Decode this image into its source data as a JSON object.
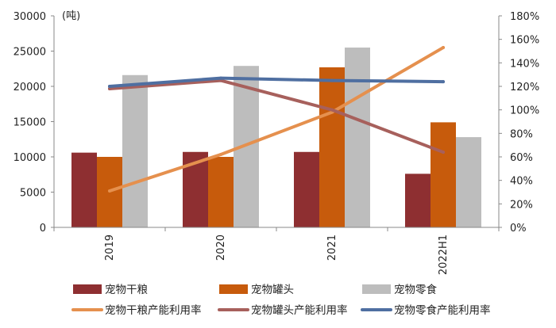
{
  "chart_data": {
    "type": "bar",
    "categories": [
      "2019",
      "2020",
      "2021",
      "2022H1"
    ],
    "unit_label": "(吨)",
    "left_axis": {
      "min": 0,
      "max": 30000,
      "ticks": [
        "0",
        "5000",
        "10000",
        "15000",
        "20000",
        "25000",
        "30000"
      ]
    },
    "right_axis": {
      "min": 0,
      "max": 180,
      "unit": "%",
      "ticks": [
        "0%",
        "20%",
        "40%",
        "60%",
        "80%",
        "100%",
        "120%",
        "140%",
        "160%",
        "180%"
      ]
    },
    "bar_series": [
      {
        "name": "宠物干粮",
        "color": "#8e2f31",
        "values": [
          10600,
          10700,
          10700,
          7600
        ]
      },
      {
        "name": "宠物罐头",
        "color": "#c75b0c",
        "values": [
          10000,
          10000,
          22700,
          14900
        ]
      },
      {
        "name": "宠物零食",
        "color": "#bdbdbd",
        "values": [
          21600,
          22900,
          25500,
          12800
        ]
      }
    ],
    "line_series": [
      {
        "name": "宠物干粮产能利用率",
        "color": "#e5904e",
        "values": [
          31,
          62,
          98,
          153
        ]
      },
      {
        "name": "宠物罐头产能利用率",
        "color": "#a7605c",
        "values": [
          118,
          125,
          100,
          64
        ]
      },
      {
        "name": "宠物零食产能利用率",
        "color": "#4f6fa1",
        "values": [
          120,
          127,
          125,
          124
        ]
      }
    ]
  }
}
